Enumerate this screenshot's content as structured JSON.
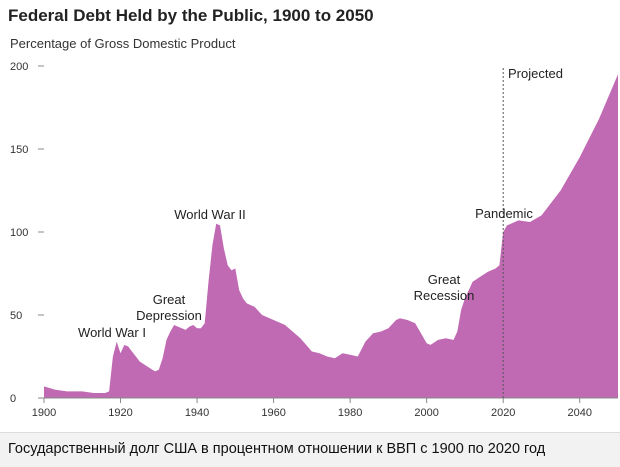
{
  "title": "Federal Debt Held by the Public, 1900 to 2050",
  "subtitle": "Percentage of Gross Domestic Product",
  "caption": "Государственный долг США в процентном отношении к ВВП с 1900 по 2020 год",
  "colors": {
    "area": "#c06ab4",
    "text": "#222222",
    "grid": "#888888"
  },
  "chart_data": {
    "type": "area",
    "title": "Federal Debt Held by the Public, 1900 to 2050",
    "subtitle": "Percentage of Gross Domestic Product",
    "xlim": [
      1900,
      2050
    ],
    "ylim": [
      0,
      200
    ],
    "x_ticks": [
      1900,
      1920,
      1940,
      1960,
      1980,
      2000,
      2020,
      2040
    ],
    "y_ticks": [
      0,
      50,
      100,
      150,
      200
    ],
    "series": [
      {
        "x": [
          1900,
          1903,
          1906,
          1910,
          1913,
          1916,
          1917,
          1918,
          1919,
          1920,
          1921,
          1922,
          1923,
          1925,
          1927,
          1929,
          1930,
          1931,
          1932,
          1933,
          1934,
          1936,
          1937,
          1938,
          1939,
          1940,
          1941,
          1942,
          1943,
          1944,
          1945,
          1946,
          1947,
          1948,
          1949,
          1950,
          1951,
          1952,
          1953,
          1955,
          1957,
          1960,
          1963,
          1965,
          1967,
          1970,
          1972,
          1974,
          1976,
          1978,
          1980,
          1982,
          1984,
          1986,
          1988,
          1990,
          1992,
          1993,
          1995,
          1997,
          2000,
          2001,
          2003,
          2005,
          2007,
          2008,
          2009,
          2010,
          2011,
          2012,
          2014,
          2016,
          2018,
          2019,
          2020,
          2021,
          2024,
          2027,
          2030,
          2035,
          2040,
          2045,
          2050
        ],
        "y": [
          7,
          5,
          4,
          4,
          3,
          3,
          4,
          25,
          34,
          27,
          32,
          31,
          28,
          22,
          19,
          16,
          17,
          24,
          35,
          40,
          44,
          42,
          41,
          43,
          44,
          42,
          42,
          45,
          70,
          92,
          105,
          104,
          90,
          80,
          77,
          78,
          65,
          60,
          57,
          55,
          50,
          47,
          44,
          40,
          36,
          28,
          27,
          25,
          24,
          27,
          26,
          25,
          34,
          39,
          40,
          42,
          47,
          48,
          47,
          45,
          33,
          32,
          35,
          36,
          35,
          40,
          53,
          60,
          65,
          70,
          73,
          76,
          78,
          80,
          100,
          104,
          107,
          106,
          110,
          125,
          145,
          168,
          195
        ]
      }
    ],
    "annotations": [
      {
        "text": "World War I",
        "year": 1919
      },
      {
        "text": [
          "Great",
          "Depression"
        ],
        "year": 1933
      },
      {
        "text": "World War II",
        "year": 1945
      },
      {
        "text": [
          "Great",
          "Recession"
        ],
        "year": 2008
      },
      {
        "text": "Pandemic",
        "year": 2020
      },
      {
        "text": "Projected",
        "year": 2020
      }
    ],
    "projection_start": 2020,
    "grid": false
  }
}
